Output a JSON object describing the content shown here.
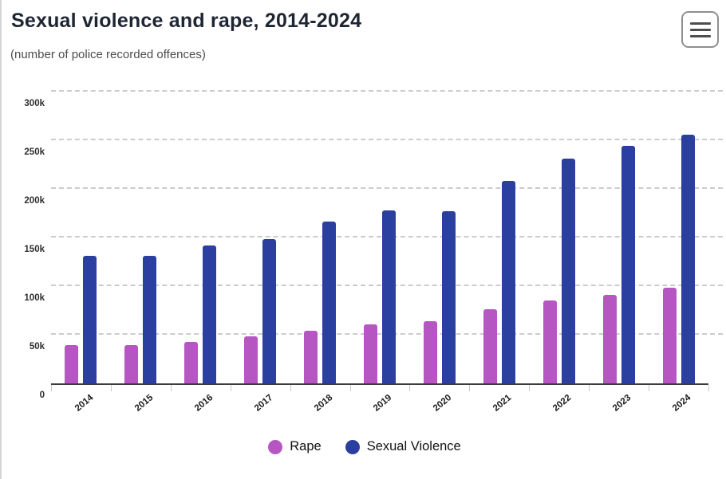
{
  "header": {
    "title": "Sexual violence and rape, 2014-2024",
    "subtitle": "(number of police recorded offences)",
    "menu_icon": "hamburger-menu-icon"
  },
  "chart_data": {
    "type": "bar",
    "title": "Sexual violence and rape, 2014-2024",
    "subtitle": "(number of police recorded offences)",
    "categories": [
      "2014",
      "2015",
      "2016",
      "2017",
      "2018",
      "2019",
      "2020",
      "2021",
      "2022",
      "2023",
      "2024"
    ],
    "series": [
      {
        "name": "Rape",
        "color": "#b656c2",
        "values": [
          39000,
          39000,
          43000,
          48000,
          54000,
          61000,
          64000,
          76000,
          85000,
          91000,
          98000
        ]
      },
      {
        "name": "Sexual Violence",
        "color": "#2b3fa1",
        "values": [
          131000,
          131000,
          142000,
          148000,
          166000,
          178000,
          177000,
          208000,
          231000,
          244000,
          256000
        ]
      }
    ],
    "ylim": [
      0,
      300000
    ],
    "ytick_step": 50000,
    "ytick_labels": [
      "0",
      "50k",
      "100k",
      "150k",
      "200k",
      "250k",
      "300k"
    ],
    "grid": "horizontal-dashed",
    "legend_position": "bottom"
  },
  "colors": {
    "title": "#1e2633",
    "subtitle": "#4c4c4c",
    "gridline": "#cccccc",
    "axis_line": "#3d3d3d",
    "page_border": "#d4d4d4"
  }
}
